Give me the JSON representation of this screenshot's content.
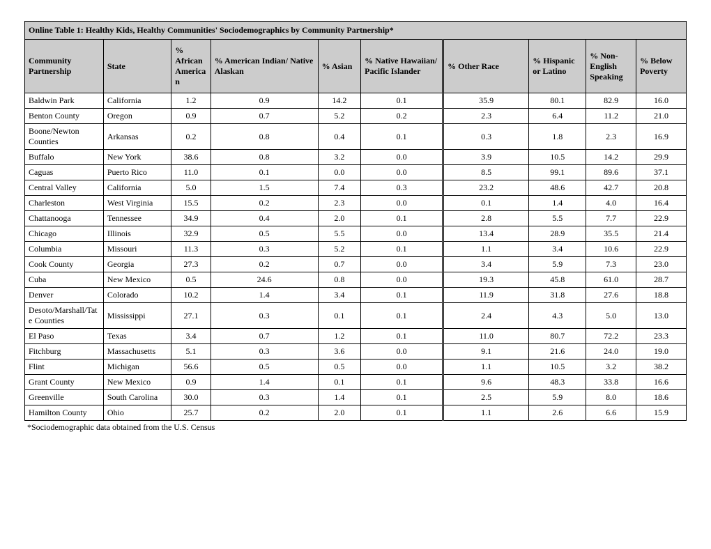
{
  "title": "Online Table 1: Healthy Kids, Healthy Communities' Sociodemographics by Community Partnership*",
  "footnote": "*Sociodemographic data obtained from the U.S. Census",
  "columns": {
    "community": "Community Partnership",
    "state": "State",
    "african": "% African American",
    "aian": "% American Indian/ Native Alaskan",
    "asian": "% Asian",
    "nhpi": "% Native Hawaiian/ Pacific Islander",
    "other": "% Other Race",
    "hisp": "% Hispanic or Latino",
    "noneng": "% Non-English Speaking",
    "poverty": "% Below Poverty"
  },
  "col_widths": {
    "community": "110px",
    "state": "95px",
    "african": "55px",
    "aian": "150px",
    "asian": "60px",
    "nhpi": "115px",
    "other": "120px",
    "hisp": "80px",
    "noneng": "70px",
    "poverty": "70px"
  },
  "style": {
    "header_bg": "#cccccc",
    "border_color": "#000000",
    "font_family": "Times New Roman",
    "font_size_pt": 9,
    "title_bold": true
  },
  "rows": [
    {
      "community": "Baldwin Park",
      "state": "California",
      "african": "1.2",
      "aian": "0.9",
      "asian": "14.2",
      "nhpi": "0.1",
      "other": "35.9",
      "hisp": "80.1",
      "noneng": "82.9",
      "poverty": "16.0"
    },
    {
      "community": "Benton County",
      "state": "Oregon",
      "african": "0.9",
      "aian": "0.7",
      "asian": "5.2",
      "nhpi": "0.2",
      "other": "2.3",
      "hisp": "6.4",
      "noneng": "11.2",
      "poverty": "21.0"
    },
    {
      "community": "Boone/Newton Counties",
      "state": "Arkansas",
      "african": "0.2",
      "aian": "0.8",
      "asian": "0.4",
      "nhpi": "0.1",
      "other": "0.3",
      "hisp": "1.8",
      "noneng": "2.3",
      "poverty": "16.9"
    },
    {
      "community": "Buffalo",
      "state": "New York",
      "african": "38.6",
      "aian": "0.8",
      "asian": "3.2",
      "nhpi": "0.0",
      "other": "3.9",
      "hisp": "10.5",
      "noneng": "14.2",
      "poverty": "29.9"
    },
    {
      "community": "Caguas",
      "state": "Puerto Rico",
      "african": "11.0",
      "aian": "0.1",
      "asian": "0.0",
      "nhpi": "0.0",
      "other": "8.5",
      "hisp": "99.1",
      "noneng": "89.6",
      "poverty": "37.1"
    },
    {
      "community": "Central Valley",
      "state": "California",
      "african": "5.0",
      "aian": "1.5",
      "asian": "7.4",
      "nhpi": "0.3",
      "other": "23.2",
      "hisp": "48.6",
      "noneng": "42.7",
      "poverty": "20.8"
    },
    {
      "community": "Charleston",
      "state": "West Virginia",
      "african": "15.5",
      "aian": "0.2",
      "asian": "2.3",
      "nhpi": "0.0",
      "other": "0.1",
      "hisp": "1.4",
      "noneng": "4.0",
      "poverty": "16.4"
    },
    {
      "community": "Chattanooga",
      "state": "Tennessee",
      "african": "34.9",
      "aian": "0.4",
      "asian": "2.0",
      "nhpi": "0.1",
      "other": "2.8",
      "hisp": "5.5",
      "noneng": "7.7",
      "poverty": "22.9"
    },
    {
      "community": "Chicago",
      "state": "Illinois",
      "african": "32.9",
      "aian": "0.5",
      "asian": "5.5",
      "nhpi": "0.0",
      "other": "13.4",
      "hisp": "28.9",
      "noneng": "35.5",
      "poverty": "21.4"
    },
    {
      "community": "Columbia",
      "state": "Missouri",
      "african": "11.3",
      "aian": "0.3",
      "asian": "5.2",
      "nhpi": "0.1",
      "other": "1.1",
      "hisp": "3.4",
      "noneng": "10.6",
      "poverty": "22.9"
    },
    {
      "community": "Cook County",
      "state": "Georgia",
      "african": "27.3",
      "aian": "0.2",
      "asian": "0.7",
      "nhpi": "0.0",
      "other": "3.4",
      "hisp": "5.9",
      "noneng": "7.3",
      "poverty": "23.0"
    },
    {
      "community": "Cuba",
      "state": "New Mexico",
      "african": "0.5",
      "aian": "24.6",
      "asian": "0.8",
      "nhpi": "0.0",
      "other": "19.3",
      "hisp": "45.8",
      "noneng": "61.0",
      "poverty": "28.7"
    },
    {
      "community": "Denver",
      "state": "Colorado",
      "african": "10.2",
      "aian": "1.4",
      "asian": "3.4",
      "nhpi": "0.1",
      "other": "11.9",
      "hisp": "31.8",
      "noneng": "27.6",
      "poverty": "18.8"
    },
    {
      "community": "Desoto/Marshall/Tate Counties",
      "state": "Mississippi",
      "african": "27.1",
      "aian": "0.3",
      "asian": "0.1",
      "nhpi": "0.1",
      "other": "2.4",
      "hisp": "4.3",
      "noneng": "5.0",
      "poverty": "13.0"
    },
    {
      "community": "El Paso",
      "state": "Texas",
      "african": "3.4",
      "aian": "0.7",
      "asian": "1.2",
      "nhpi": "0.1",
      "other": "11.0",
      "hisp": "80.7",
      "noneng": "72.2",
      "poverty": "23.3"
    },
    {
      "community": "Fitchburg",
      "state": "Massachusetts",
      "african": "5.1",
      "aian": "0.3",
      "asian": "3.6",
      "nhpi": "0.0",
      "other": "9.1",
      "hisp": "21.6",
      "noneng": "24.0",
      "poverty": "19.0"
    },
    {
      "community": "Flint",
      "state": "Michigan",
      "african": "56.6",
      "aian": "0.5",
      "asian": "0.5",
      "nhpi": "0.0",
      "other": "1.1",
      "hisp": "10.5",
      "noneng": "3.2",
      "poverty": "38.2"
    },
    {
      "community": "Grant County",
      "state": "New Mexico",
      "african": "0.9",
      "aian": "1.4",
      "asian": "0.1",
      "nhpi": "0.1",
      "other": "9.6",
      "hisp": "48.3",
      "noneng": "33.8",
      "poverty": "16.6"
    },
    {
      "community": "Greenville",
      "state": "South Carolina",
      "african": "30.0",
      "aian": "0.3",
      "asian": "1.4",
      "nhpi": "0.1",
      "other": "2.5",
      "hisp": "5.9",
      "noneng": "8.0",
      "poverty": "18.6"
    },
    {
      "community": "Hamilton County",
      "state": "Ohio",
      "african": "25.7",
      "aian": "0.2",
      "asian": "2.0",
      "nhpi": "0.1",
      "other": "1.1",
      "hisp": "2.6",
      "noneng": "6.6",
      "poverty": "15.9"
    }
  ]
}
